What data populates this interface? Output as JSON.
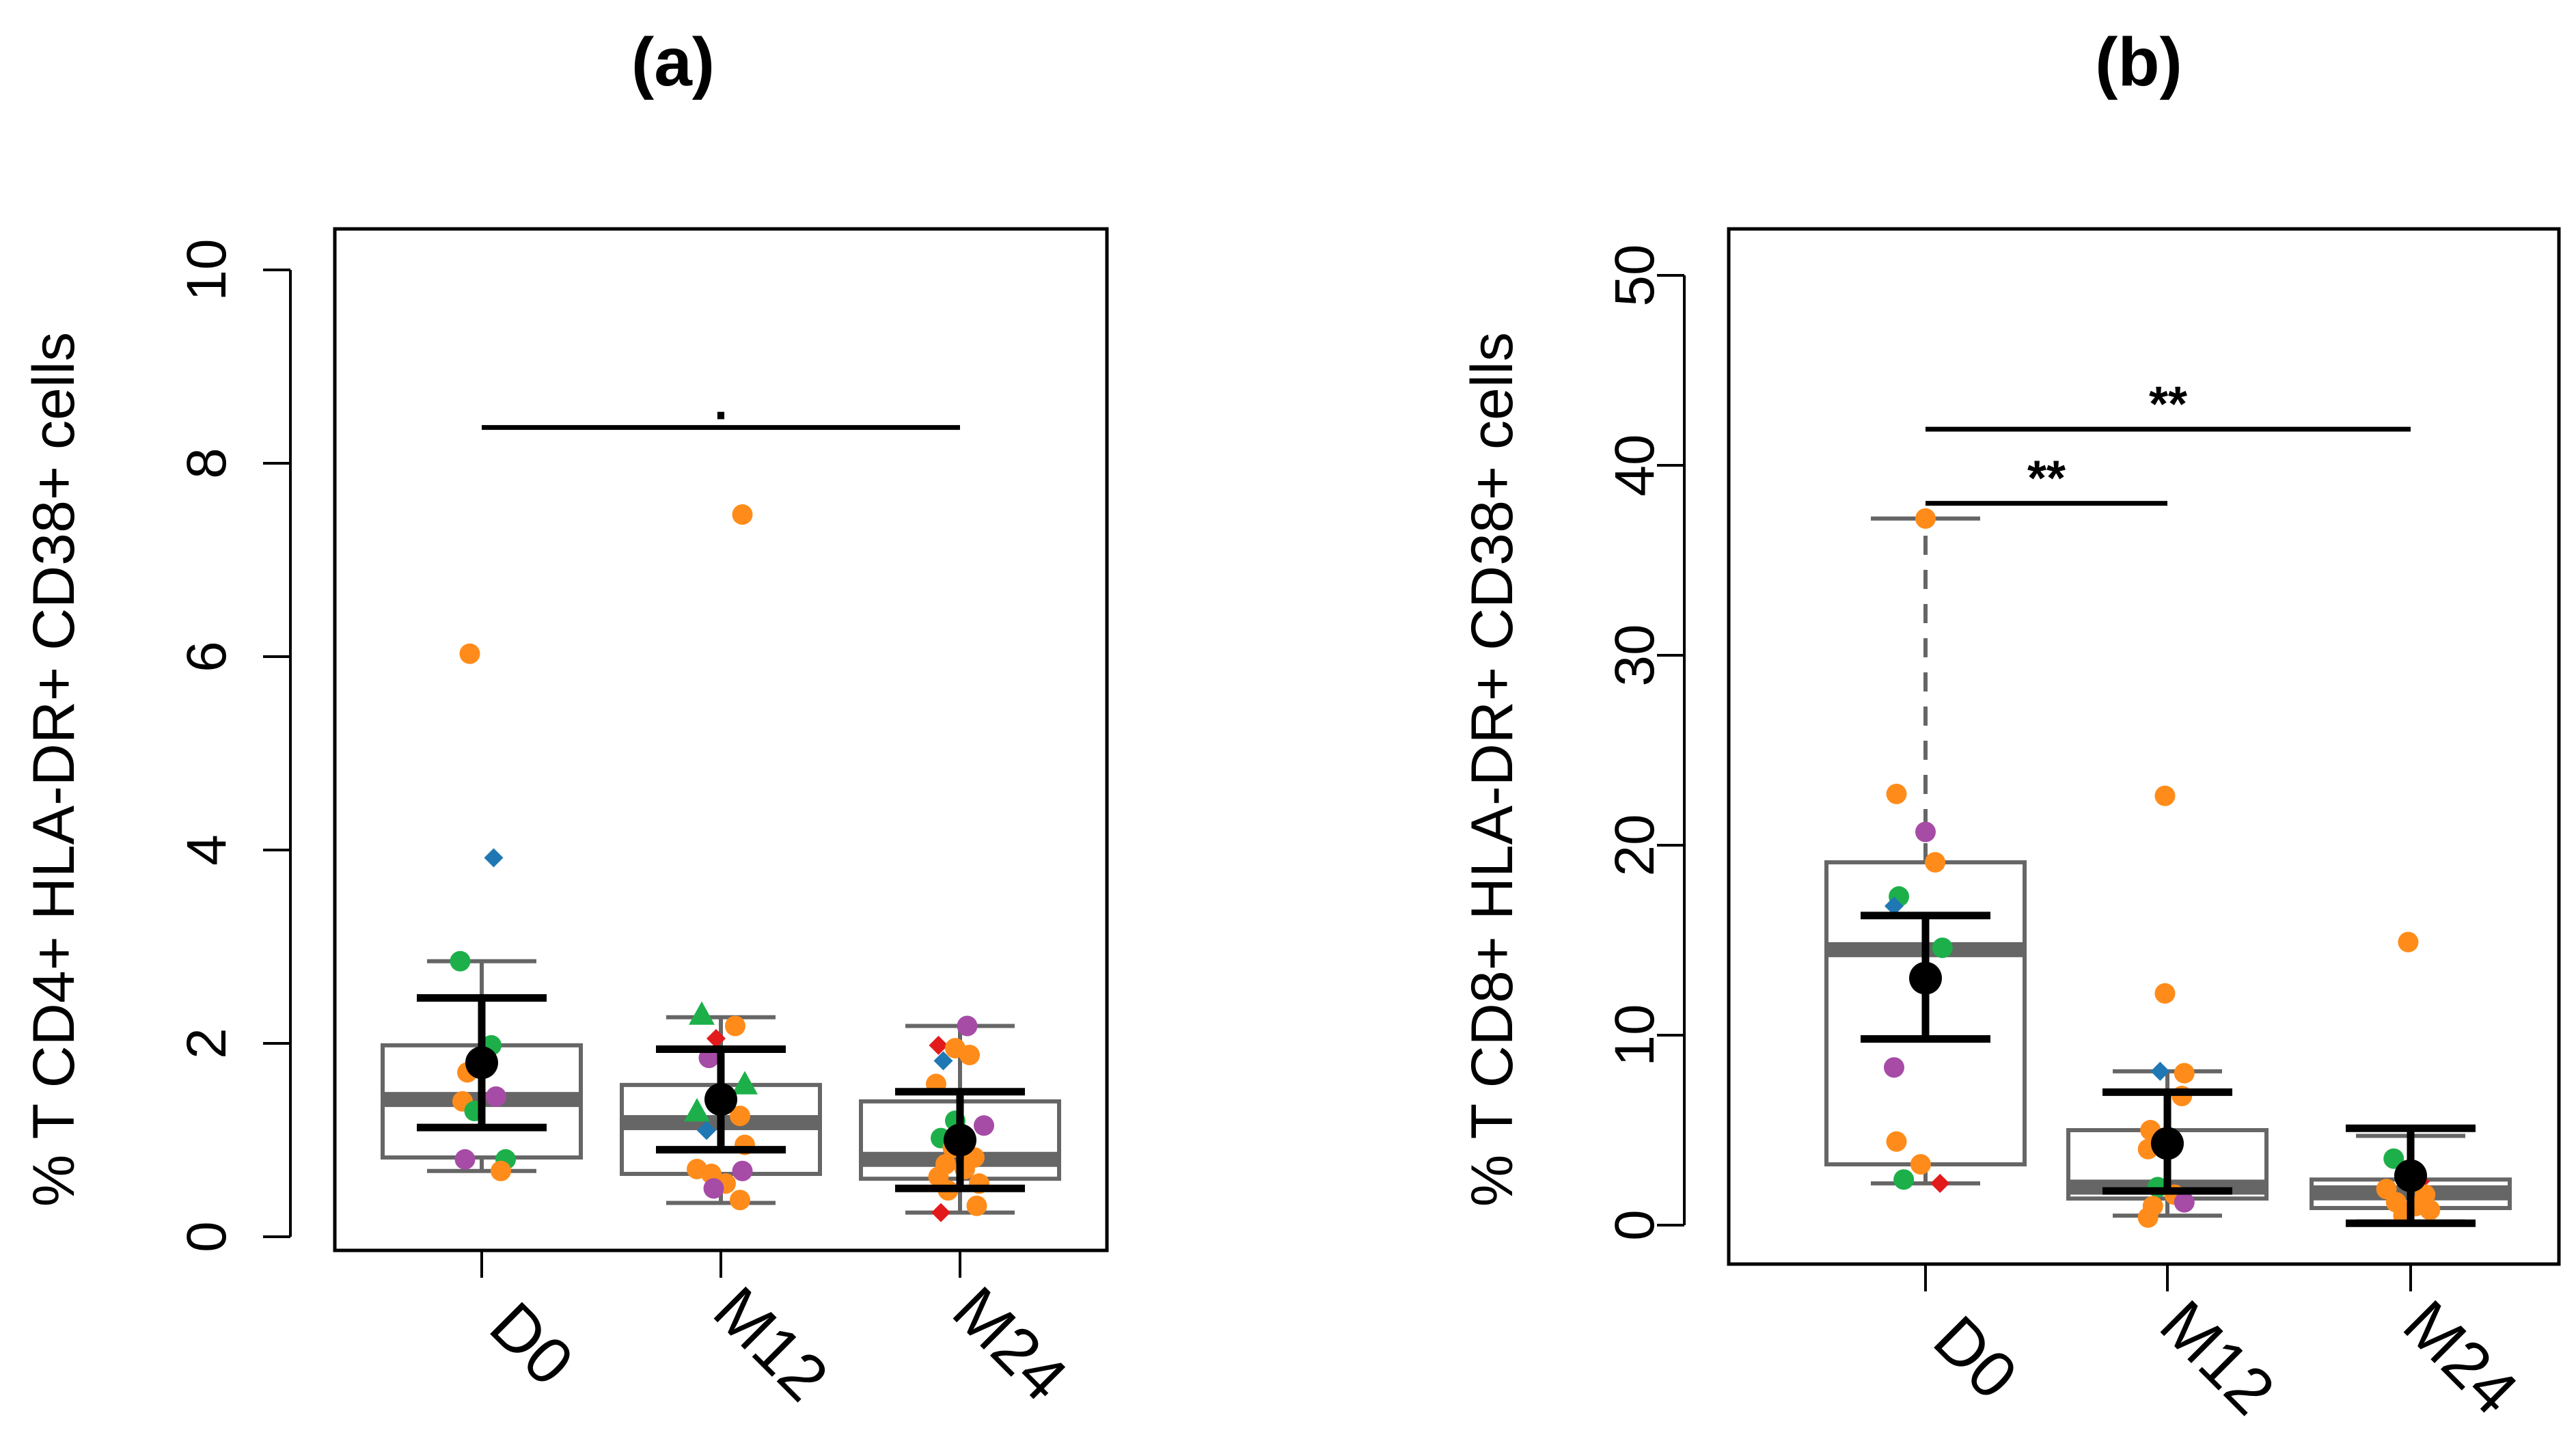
{
  "chart_data": [
    {
      "type": "boxplot",
      "panel_label": "(a)",
      "ylabel": "% T CD4+ HLA-DR+ CD38+ cells",
      "categories": [
        "D0",
        "M12",
        "M24"
      ],
      "ylim": [
        0,
        10
      ],
      "yticks": [
        0,
        2,
        4,
        6,
        8,
        10
      ],
      "boxes": [
        {
          "q1": 0.82,
          "median": 1.42,
          "q3": 1.98,
          "whisker_low": 0.68,
          "whisker_high": 2.85,
          "whisker_high_dashed": false
        },
        {
          "q1": 0.65,
          "median": 1.18,
          "q3": 1.57,
          "whisker_low": 0.35,
          "whisker_high": 2.27,
          "whisker_high_dashed": false
        },
        {
          "q1": 0.6,
          "median": 0.8,
          "q3": 1.4,
          "whisker_low": 0.25,
          "whisker_high": 2.18,
          "whisker_high_dashed": false
        }
      ],
      "means": [
        {
          "mean": 1.8,
          "ci_low": 1.13,
          "ci_high": 2.47
        },
        {
          "mean": 1.42,
          "ci_low": 0.9,
          "ci_high": 1.94
        },
        {
          "mean": 1.0,
          "ci_low": 0.5,
          "ci_high": 1.5
        }
      ],
      "points": [
        {
          "group": 0,
          "dx": -0.05,
          "y": 6.03,
          "color": "#ff8c1a",
          "shape": "circle"
        },
        {
          "group": 0,
          "dx": 0.05,
          "y": 3.92,
          "color": "#1f78b4",
          "shape": "diamond"
        },
        {
          "group": 0,
          "dx": -0.09,
          "y": 2.85,
          "color": "#1db04a",
          "shape": "circle"
        },
        {
          "group": 0,
          "dx": 0.04,
          "y": 1.98,
          "color": "#1db04a",
          "shape": "circle"
        },
        {
          "group": 0,
          "dx": -0.06,
          "y": 1.7,
          "color": "#ff8c1a",
          "shape": "circle"
        },
        {
          "group": 0,
          "dx": 0.06,
          "y": 1.45,
          "color": "#a64ca6",
          "shape": "circle"
        },
        {
          "group": 0,
          "dx": -0.08,
          "y": 1.4,
          "color": "#ff8c1a",
          "shape": "circle"
        },
        {
          "group": 0,
          "dx": -0.03,
          "y": 1.3,
          "color": "#1db04a",
          "shape": "circle"
        },
        {
          "group": 0,
          "dx": -0.07,
          "y": 0.8,
          "color": "#a64ca6",
          "shape": "circle"
        },
        {
          "group": 0,
          "dx": 0.1,
          "y": 0.8,
          "color": "#1db04a",
          "shape": "circle"
        },
        {
          "group": 0,
          "dx": 0.08,
          "y": 0.68,
          "color": "#ff8c1a",
          "shape": "circle"
        },
        {
          "group": 1,
          "dx": 0.09,
          "y": 7.47,
          "color": "#ff8c1a",
          "shape": "circle"
        },
        {
          "group": 1,
          "dx": -0.08,
          "y": 2.3,
          "color": "#1db04a",
          "shape": "triangle"
        },
        {
          "group": 1,
          "dx": 0.06,
          "y": 2.18,
          "color": "#ff8c1a",
          "shape": "circle"
        },
        {
          "group": 1,
          "dx": -0.02,
          "y": 2.05,
          "color": "#e31a1c",
          "shape": "diamond"
        },
        {
          "group": 1,
          "dx": -0.05,
          "y": 1.85,
          "color": "#a64ca6",
          "shape": "circle"
        },
        {
          "group": 1,
          "dx": 0.1,
          "y": 1.58,
          "color": "#1db04a",
          "shape": "triangle"
        },
        {
          "group": 1,
          "dx": -0.1,
          "y": 1.3,
          "color": "#1db04a",
          "shape": "triangle"
        },
        {
          "group": 1,
          "dx": 0.08,
          "y": 1.25,
          "color": "#ff8c1a",
          "shape": "circle"
        },
        {
          "group": 1,
          "dx": -0.06,
          "y": 1.1,
          "color": "#1f78b4",
          "shape": "diamond"
        },
        {
          "group": 1,
          "dx": 0.1,
          "y": 0.95,
          "color": "#ff8c1a",
          "shape": "circle"
        },
        {
          "group": 1,
          "dx": -0.1,
          "y": 0.7,
          "color": "#ff8c1a",
          "shape": "circle"
        },
        {
          "group": 1,
          "dx": 0.09,
          "y": 0.68,
          "color": "#a64ca6",
          "shape": "circle"
        },
        {
          "group": 1,
          "dx": -0.04,
          "y": 0.65,
          "color": "#ff8c1a",
          "shape": "circle"
        },
        {
          "group": 1,
          "dx": 0.02,
          "y": 0.55,
          "color": "#ff8c1a",
          "shape": "circle"
        },
        {
          "group": 1,
          "dx": -0.03,
          "y": 0.5,
          "color": "#a64ca6",
          "shape": "circle"
        },
        {
          "group": 1,
          "dx": 0.08,
          "y": 0.38,
          "color": "#ff8c1a",
          "shape": "circle"
        },
        {
          "group": 2,
          "dx": 0.03,
          "y": 2.18,
          "color": "#a64ca6",
          "shape": "circle"
        },
        {
          "group": 2,
          "dx": -0.09,
          "y": 1.98,
          "color": "#e31a1c",
          "shape": "diamond"
        },
        {
          "group": 2,
          "dx": -0.02,
          "y": 1.95,
          "color": "#ff8c1a",
          "shape": "circle"
        },
        {
          "group": 2,
          "dx": 0.04,
          "y": 1.88,
          "color": "#ff8c1a",
          "shape": "circle"
        },
        {
          "group": 2,
          "dx": -0.07,
          "y": 1.82,
          "color": "#1f78b4",
          "shape": "diamond"
        },
        {
          "group": 2,
          "dx": -0.1,
          "y": 1.58,
          "color": "#ff8c1a",
          "shape": "circle"
        },
        {
          "group": 2,
          "dx": -0.02,
          "y": 1.2,
          "color": "#1db04a",
          "shape": "circle"
        },
        {
          "group": 2,
          "dx": 0.1,
          "y": 1.15,
          "color": "#a64ca6",
          "shape": "circle"
        },
        {
          "group": 2,
          "dx": -0.08,
          "y": 1.02,
          "color": "#1db04a",
          "shape": "circle"
        },
        {
          "group": 2,
          "dx": -0.03,
          "y": 0.92,
          "color": "#ff8c1a",
          "shape": "circle"
        },
        {
          "group": 2,
          "dx": 0.06,
          "y": 0.82,
          "color": "#ff8c1a",
          "shape": "circle"
        },
        {
          "group": 2,
          "dx": -0.06,
          "y": 0.75,
          "color": "#ff8c1a",
          "shape": "circle"
        },
        {
          "group": 2,
          "dx": 0.02,
          "y": 0.7,
          "color": "#ff8c1a",
          "shape": "circle"
        },
        {
          "group": 2,
          "dx": -0.09,
          "y": 0.62,
          "color": "#ff8c1a",
          "shape": "circle"
        },
        {
          "group": 2,
          "dx": 0.08,
          "y": 0.55,
          "color": "#ff8c1a",
          "shape": "circle"
        },
        {
          "group": 2,
          "dx": -0.05,
          "y": 0.48,
          "color": "#ff8c1a",
          "shape": "circle"
        },
        {
          "group": 2,
          "dx": 0.07,
          "y": 0.32,
          "color": "#ff8c1a",
          "shape": "circle"
        },
        {
          "group": 2,
          "dx": -0.08,
          "y": 0.25,
          "color": "#e31a1c",
          "shape": "diamond"
        }
      ],
      "significance": [
        {
          "from": 0,
          "to": 2,
          "y": 8.37,
          "label": "."
        }
      ]
    },
    {
      "type": "boxplot",
      "panel_label": "(b)",
      "ylabel": "% T CD8+ HLA-DR+ CD38+ cells",
      "categories": [
        "D0",
        "M12",
        "M24"
      ],
      "ylim": [
        0,
        50
      ],
      "yticks": [
        0,
        10,
        20,
        30,
        40,
        50
      ],
      "boxes": [
        {
          "q1": 3.2,
          "median": 14.5,
          "q3": 19.1,
          "whisker_low": 2.2,
          "whisker_high": 37.2,
          "whisker_high_dashed": true
        },
        {
          "q1": 1.4,
          "median": 2.0,
          "q3": 5.0,
          "whisker_low": 0.5,
          "whisker_high": 8.1,
          "whisker_high_dashed": false
        },
        {
          "q1": 0.9,
          "median": 1.7,
          "q3": 2.4,
          "whisker_low": 0.2,
          "whisker_high": 4.7,
          "whisker_high_dashed": false
        }
      ],
      "means": [
        {
          "mean": 13.0,
          "ci_low": 9.8,
          "ci_high": 16.3
        },
        {
          "mean": 4.3,
          "ci_low": 1.8,
          "ci_high": 7.0
        },
        {
          "mean": 2.6,
          "ci_low": 0.1,
          "ci_high": 5.1
        }
      ],
      "points": [
        {
          "group": 0,
          "dx": 0.0,
          "y": 37.2,
          "color": "#ff8c1a",
          "shape": "circle"
        },
        {
          "group": 0,
          "dx": -0.12,
          "y": 22.7,
          "color": "#ff8c1a",
          "shape": "circle"
        },
        {
          "group": 0,
          "dx": 0.0,
          "y": 20.7,
          "color": "#a64ca6",
          "shape": "circle"
        },
        {
          "group": 0,
          "dx": 0.04,
          "y": 19.1,
          "color": "#ff8c1a",
          "shape": "circle"
        },
        {
          "group": 0,
          "dx": -0.11,
          "y": 17.3,
          "color": "#1db04a",
          "shape": "circle"
        },
        {
          "group": 0,
          "dx": -0.13,
          "y": 16.8,
          "color": "#1f78b4",
          "shape": "diamond"
        },
        {
          "group": 0,
          "dx": 0.07,
          "y": 14.6,
          "color": "#1db04a",
          "shape": "circle"
        },
        {
          "group": 0,
          "dx": -0.13,
          "y": 8.3,
          "color": "#a64ca6",
          "shape": "circle"
        },
        {
          "group": 0,
          "dx": -0.12,
          "y": 4.4,
          "color": "#ff8c1a",
          "shape": "circle"
        },
        {
          "group": 0,
          "dx": -0.02,
          "y": 3.2,
          "color": "#ff8c1a",
          "shape": "circle"
        },
        {
          "group": 0,
          "dx": -0.09,
          "y": 2.4,
          "color": "#1db04a",
          "shape": "circle"
        },
        {
          "group": 0,
          "dx": 0.06,
          "y": 2.2,
          "color": "#e31a1c",
          "shape": "diamond"
        },
        {
          "group": 1,
          "dx": -0.01,
          "y": 22.6,
          "color": "#ff8c1a",
          "shape": "circle"
        },
        {
          "group": 1,
          "dx": -0.01,
          "y": 12.2,
          "color": "#ff8c1a",
          "shape": "circle"
        },
        {
          "group": 1,
          "dx": -0.03,
          "y": 8.1,
          "color": "#1f78b4",
          "shape": "diamond"
        },
        {
          "group": 1,
          "dx": 0.07,
          "y": 8.0,
          "color": "#ff8c1a",
          "shape": "circle"
        },
        {
          "group": 1,
          "dx": 0.06,
          "y": 6.8,
          "color": "#ff8c1a",
          "shape": "circle"
        },
        {
          "group": 1,
          "dx": -0.07,
          "y": 5.0,
          "color": "#ff8c1a",
          "shape": "circle"
        },
        {
          "group": 1,
          "dx": -0.08,
          "y": 4.0,
          "color": "#ff8c1a",
          "shape": "circle"
        },
        {
          "group": 1,
          "dx": -0.04,
          "y": 2.0,
          "color": "#1db04a",
          "shape": "circle"
        },
        {
          "group": 1,
          "dx": 0.03,
          "y": 1.6,
          "color": "#ff8c1a",
          "shape": "circle"
        },
        {
          "group": 1,
          "dx": 0.07,
          "y": 1.2,
          "color": "#a64ca6",
          "shape": "circle"
        },
        {
          "group": 1,
          "dx": -0.06,
          "y": 1.0,
          "color": "#ff8c1a",
          "shape": "circle"
        },
        {
          "group": 1,
          "dx": -0.08,
          "y": 0.4,
          "color": "#ff8c1a",
          "shape": "circle"
        },
        {
          "group": 2,
          "dx": -0.01,
          "y": 14.9,
          "color": "#ff8c1a",
          "shape": "circle"
        },
        {
          "group": 2,
          "dx": -0.07,
          "y": 3.5,
          "color": "#1db04a",
          "shape": "circle"
        },
        {
          "group": 2,
          "dx": 0.0,
          "y": 2.8,
          "color": "#ff8c1a",
          "shape": "circle"
        },
        {
          "group": 2,
          "dx": 0.04,
          "y": 2.3,
          "color": "#e31a1c",
          "shape": "diamond"
        },
        {
          "group": 2,
          "dx": -0.1,
          "y": 1.9,
          "color": "#ff8c1a",
          "shape": "circle"
        },
        {
          "group": 2,
          "dx": 0.06,
          "y": 1.6,
          "color": "#ff8c1a",
          "shape": "circle"
        },
        {
          "group": 2,
          "dx": -0.06,
          "y": 1.2,
          "color": "#ff8c1a",
          "shape": "circle"
        },
        {
          "group": 2,
          "dx": 0.02,
          "y": 1.0,
          "color": "#ff8c1a",
          "shape": "circle"
        },
        {
          "group": 2,
          "dx": 0.08,
          "y": 0.8,
          "color": "#ff8c1a",
          "shape": "circle"
        },
        {
          "group": 2,
          "dx": -0.03,
          "y": 0.5,
          "color": "#ff8c1a",
          "shape": "circle"
        }
      ],
      "significance": [
        {
          "from": 0,
          "to": 2,
          "y": 41.9,
          "label": "**"
        },
        {
          "from": 0,
          "to": 1,
          "y": 38.0,
          "label": "**"
        }
      ]
    }
  ]
}
